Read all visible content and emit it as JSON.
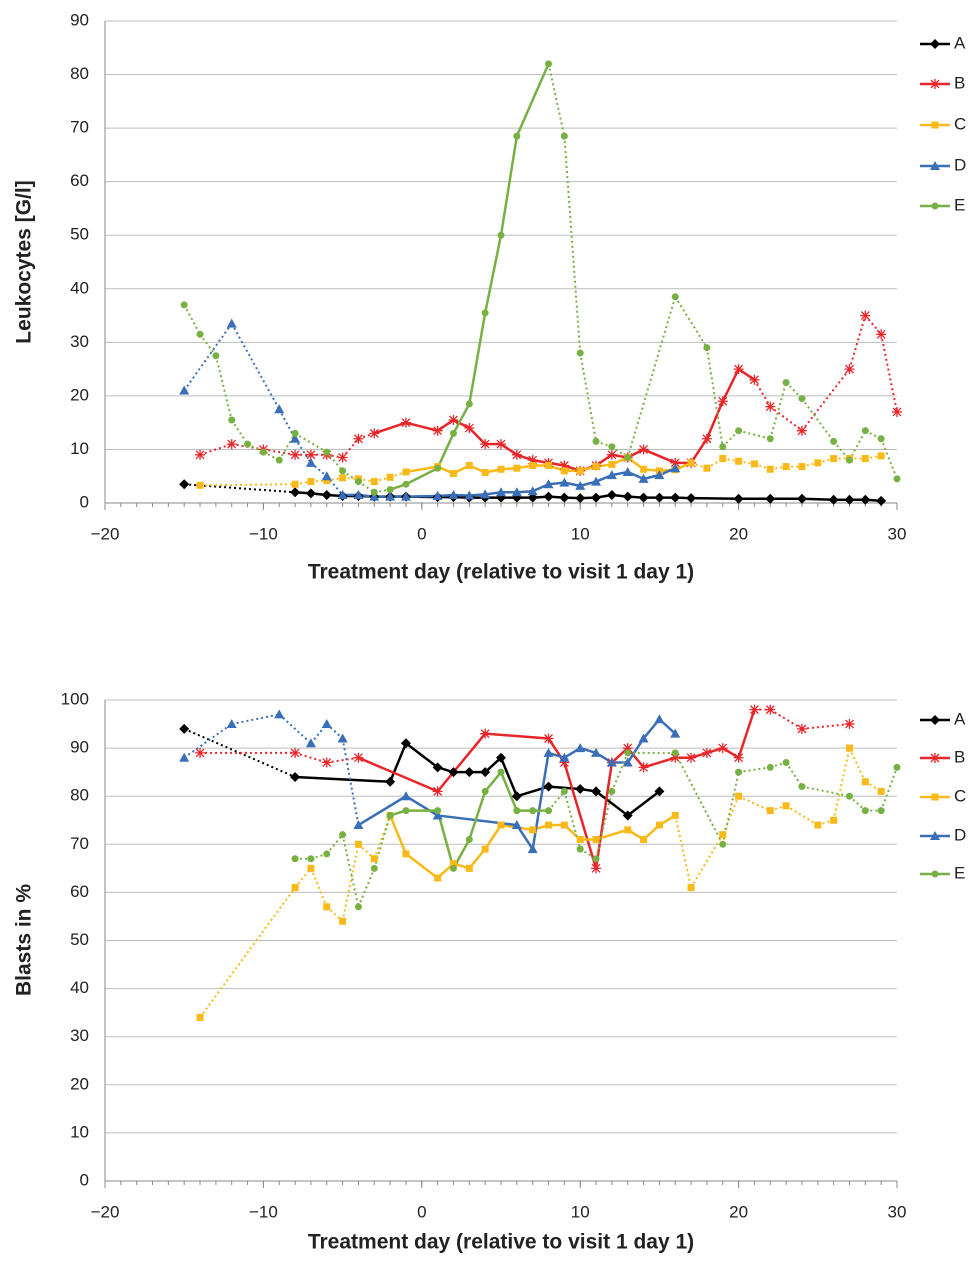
{
  "chart_data": [
    {
      "type": "line",
      "x_label": "Treatment day (relative to visit 1 day 1)",
      "y_label": "Leukocytes [G/l]",
      "xlim": [
        -20,
        30
      ],
      "xticks": [
        {
          "value": -20,
          "label": "−20"
        },
        {
          "value": -10,
          "label": "−10"
        },
        0,
        10,
        20,
        30
      ],
      "ylim": [
        0,
        90
      ],
      "yticks": [
        0,
        10,
        20,
        30,
        40,
        50,
        60,
        70,
        80,
        90
      ],
      "grid": true,
      "legend": "right",
      "series": [
        {
          "name": "A",
          "color": "#000000",
          "marker": "diamond",
          "solid_span": [
            -8,
            29
          ],
          "x": [
            -15,
            -8,
            -7,
            -6,
            -5,
            -4,
            -3,
            -2,
            -1,
            1,
            2,
            3,
            4,
            5,
            6,
            7,
            8,
            9,
            10,
            11,
            12,
            13,
            14,
            15,
            16,
            17,
            20,
            22,
            24,
            26,
            27,
            28,
            29
          ],
          "values": [
            3.5,
            2,
            1.8,
            1.5,
            1.3,
            1.3,
            1.2,
            1.2,
            1.2,
            1.1,
            1.1,
            1.0,
            1.0,
            1.0,
            1.0,
            1.0,
            1.2,
            1.0,
            0.9,
            1.0,
            1.5,
            1.2,
            1.0,
            1.0,
            1.0,
            0.9,
            0.8,
            0.8,
            0.8,
            0.6,
            0.6,
            0.6,
            0.4
          ]
        },
        {
          "name": "B",
          "color": "#e8262a",
          "marker": "star",
          "solid_span": [
            -3,
            21
          ],
          "x": [
            -14,
            -12,
            -10,
            -8,
            -7,
            -6,
            -5,
            -4,
            -3,
            -1,
            1,
            2,
            3,
            4,
            5,
            6,
            7,
            8,
            9,
            10,
            11,
            12,
            13,
            14,
            16,
            17,
            18,
            19,
            20,
            21,
            22,
            24,
            27,
            28,
            29,
            30
          ],
          "values": [
            9,
            11,
            10,
            9,
            9,
            9,
            8.5,
            12,
            13,
            15,
            13.5,
            15.5,
            14,
            11,
            11,
            9,
            8,
            7.5,
            7,
            6,
            7,
            9,
            8.5,
            10,
            7.5,
            7.5,
            12,
            19,
            25,
            23,
            18,
            13.5,
            25,
            35,
            31.5,
            17
          ]
        },
        {
          "name": "C",
          "color": "#f9b918",
          "marker": "square",
          "solid_span": [
            -1,
            17
          ],
          "x": [
            -14,
            -8,
            -7,
            -6,
            -5,
            -4,
            -3,
            -2,
            -1,
            1,
            2,
            3,
            4,
            5,
            6,
            7,
            8,
            9,
            10,
            11,
            12,
            13,
            14,
            15,
            16,
            17,
            18,
            19,
            20,
            21,
            22,
            23,
            24,
            25,
            26,
            27,
            28,
            29
          ],
          "values": [
            3.3,
            3.5,
            4,
            4.2,
            4.7,
            4.5,
            4,
            4.8,
            5.8,
            6.8,
            5.5,
            7,
            5.7,
            6.3,
            6.5,
            7,
            7,
            6,
            6,
            6.8,
            7.2,
            8.5,
            6.3,
            6,
            6.2,
            7.5,
            6.5,
            8.3,
            7.8,
            7.3,
            6.3,
            6.8,
            6.8,
            7.5,
            8.3,
            8.3,
            8.3,
            8.8
          ]
        },
        {
          "name": "D",
          "color": "#3a6fb7",
          "marker": "triangle",
          "solid_span": [
            -5,
            16
          ],
          "x": [
            -15,
            -12,
            -9,
            -8,
            -7,
            -6,
            -5,
            -4,
            -3,
            -2,
            -1,
            1,
            2,
            3,
            4,
            5,
            6,
            7,
            8,
            9,
            10,
            11,
            12,
            13,
            14,
            15,
            16
          ],
          "values": [
            21,
            33.5,
            17.5,
            12,
            7.5,
            5,
            1.5,
            1.5,
            1.2,
            1.2,
            1.2,
            1.3,
            1.5,
            1.4,
            1.6,
            2,
            2,
            2.2,
            3.5,
            3.8,
            3.2,
            4,
            5.2,
            5.8,
            4.5,
            5.2,
            6.5
          ]
        },
        {
          "name": "E",
          "color": "#77b043",
          "marker": "circle",
          "solid_span": [
            -2,
            8
          ],
          "x": [
            -15,
            -14,
            -13,
            -12,
            -11,
            -10,
            -9,
            -8,
            -6,
            -5,
            -4,
            -3,
            -2,
            -1,
            1,
            2,
            3,
            4,
            5,
            6,
            8,
            9,
            10,
            11,
            12,
            13,
            16,
            18,
            19,
            20,
            22,
            23,
            24,
            26,
            27,
            28,
            29,
            30
          ],
          "values": [
            37,
            31.5,
            27.5,
            15.5,
            11,
            9.5,
            8,
            13,
            9.5,
            6,
            4,
            2,
            2.5,
            3.5,
            6.5,
            13,
            18.5,
            35.5,
            50,
            68.5,
            82,
            68.5,
            28,
            11.5,
            10.5,
            8.5,
            38.5,
            29,
            10.5,
            13.5,
            12,
            22.5,
            19.5,
            11.5,
            8,
            13.5,
            12,
            4.5
          ]
        }
      ]
    },
    {
      "type": "line",
      "x_label": "Treatment day (relative to visit 1 day 1)",
      "y_label": "Blasts in %",
      "xlim": [
        -20,
        30
      ],
      "xticks": [
        {
          "value": -20,
          "label": "−20"
        },
        {
          "value": -10,
          "label": "−10"
        },
        0,
        10,
        20,
        30
      ],
      "ylim": [
        0,
        100
      ],
      "yticks": [
        0,
        10,
        20,
        30,
        40,
        50,
        60,
        70,
        80,
        90,
        100
      ],
      "grid": true,
      "legend": "right",
      "series": [
        {
          "name": "A",
          "color": "#000000",
          "marker": "diamond",
          "solid_span": [
            -8,
            15
          ],
          "x": [
            -15,
            -8,
            -2,
            -1,
            1,
            2,
            3,
            4,
            5,
            6,
            8,
            10,
            11,
            13,
            15
          ],
          "values": [
            94,
            84,
            83,
            91,
            86,
            85,
            85,
            85,
            88,
            80,
            82,
            81.5,
            81,
            76,
            81
          ]
        },
        {
          "name": "B",
          "color": "#e8262a",
          "marker": "star",
          "solid_span": [
            -4,
            21
          ],
          "x": [
            -14,
            -8,
            -6,
            -4,
            1,
            4,
            8,
            9,
            11,
            12,
            13,
            14,
            16,
            17,
            18,
            19,
            20,
            21,
            22,
            24,
            27
          ],
          "values": [
            89,
            89,
            87,
            88,
            81,
            93,
            92,
            87,
            65,
            87,
            90,
            86,
            88,
            88,
            89,
            90,
            88,
            98,
            98,
            94,
            95
          ]
        },
        {
          "name": "C",
          "color": "#f9b918",
          "marker": "square",
          "solid_span": [
            -2,
            16
          ],
          "x": [
            -14,
            -8,
            -7,
            -6,
            -5,
            -4,
            -3,
            -2,
            -1,
            1,
            2,
            3,
            4,
            5,
            7,
            8,
            9,
            10,
            11,
            13,
            14,
            15,
            16,
            17,
            19,
            20,
            22,
            23,
            25,
            26,
            27,
            28,
            29
          ],
          "values": [
            34,
            61,
            65,
            57,
            54,
            70,
            67,
            76,
            68,
            63,
            66,
            65,
            69,
            74,
            73,
            74,
            74,
            71,
            71,
            73,
            71,
            74,
            76,
            61,
            72,
            80,
            77,
            78,
            74,
            75,
            90,
            83,
            81
          ]
        },
        {
          "name": "D",
          "color": "#3a6fb7",
          "marker": "triangle",
          "solid_span": [
            -4,
            16
          ],
          "x": [
            -15,
            -12,
            -9,
            -7,
            -6,
            -5,
            -4,
            -1,
            1,
            6,
            7,
            8,
            9,
            10,
            11,
            12,
            13,
            14,
            15,
            16
          ],
          "values": [
            88,
            95,
            97,
            91,
            95,
            92,
            74,
            80,
            76,
            74,
            69,
            89,
            88,
            90,
            89,
            87,
            87,
            92,
            96,
            93
          ]
        },
        {
          "name": "E",
          "color": "#77b043",
          "marker": "circle",
          "solid_span": [
            -2,
            8
          ],
          "x": [
            -8,
            -7,
            -6,
            -5,
            -4,
            -3,
            -2,
            -1,
            1,
            2,
            3,
            4,
            5,
            6,
            7,
            8,
            9,
            10,
            11,
            12,
            13,
            16,
            19,
            20,
            22,
            23,
            24,
            27,
            28,
            29,
            30
          ],
          "values": [
            67,
            67,
            68,
            72,
            57,
            65,
            76,
            77,
            77,
            65,
            71,
            81,
            85,
            77,
            77,
            77,
            81,
            69,
            67,
            81,
            89,
            89,
            70,
            85,
            86,
            87,
            82,
            80,
            77,
            77,
            86
          ]
        }
      ]
    }
  ]
}
